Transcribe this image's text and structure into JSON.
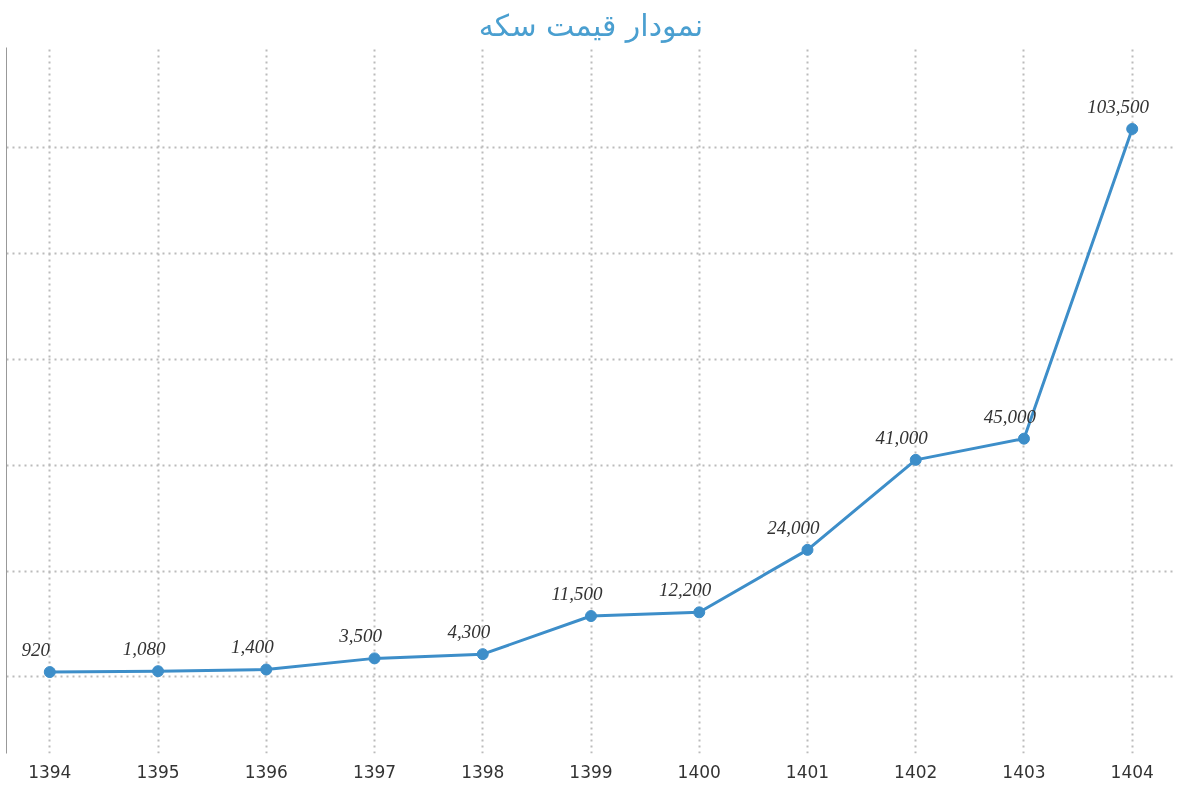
{
  "chart_data": {
    "type": "line",
    "title": "نمودار قیمت سکه",
    "categories": [
      "1394",
      "1395",
      "1396",
      "1397",
      "1398",
      "1399",
      "1400",
      "1401",
      "1402",
      "1403",
      "1404"
    ],
    "series": [
      {
        "color": "#3d8ec9",
        "values": [
          920,
          1080,
          1400,
          3500,
          4300,
          11500,
          12200,
          24000,
          41000,
          45000,
          103500
        ],
        "value_labels": [
          "920",
          "1,080",
          "1,400",
          "3,500",
          "4,300",
          "11,500",
          "12,200",
          "24,000",
          "41,000",
          "45,000",
          "103,500"
        ]
      }
    ],
    "tick_labels": "x",
    "grid": true,
    "marker": "circle",
    "line_style": "solid"
  }
}
